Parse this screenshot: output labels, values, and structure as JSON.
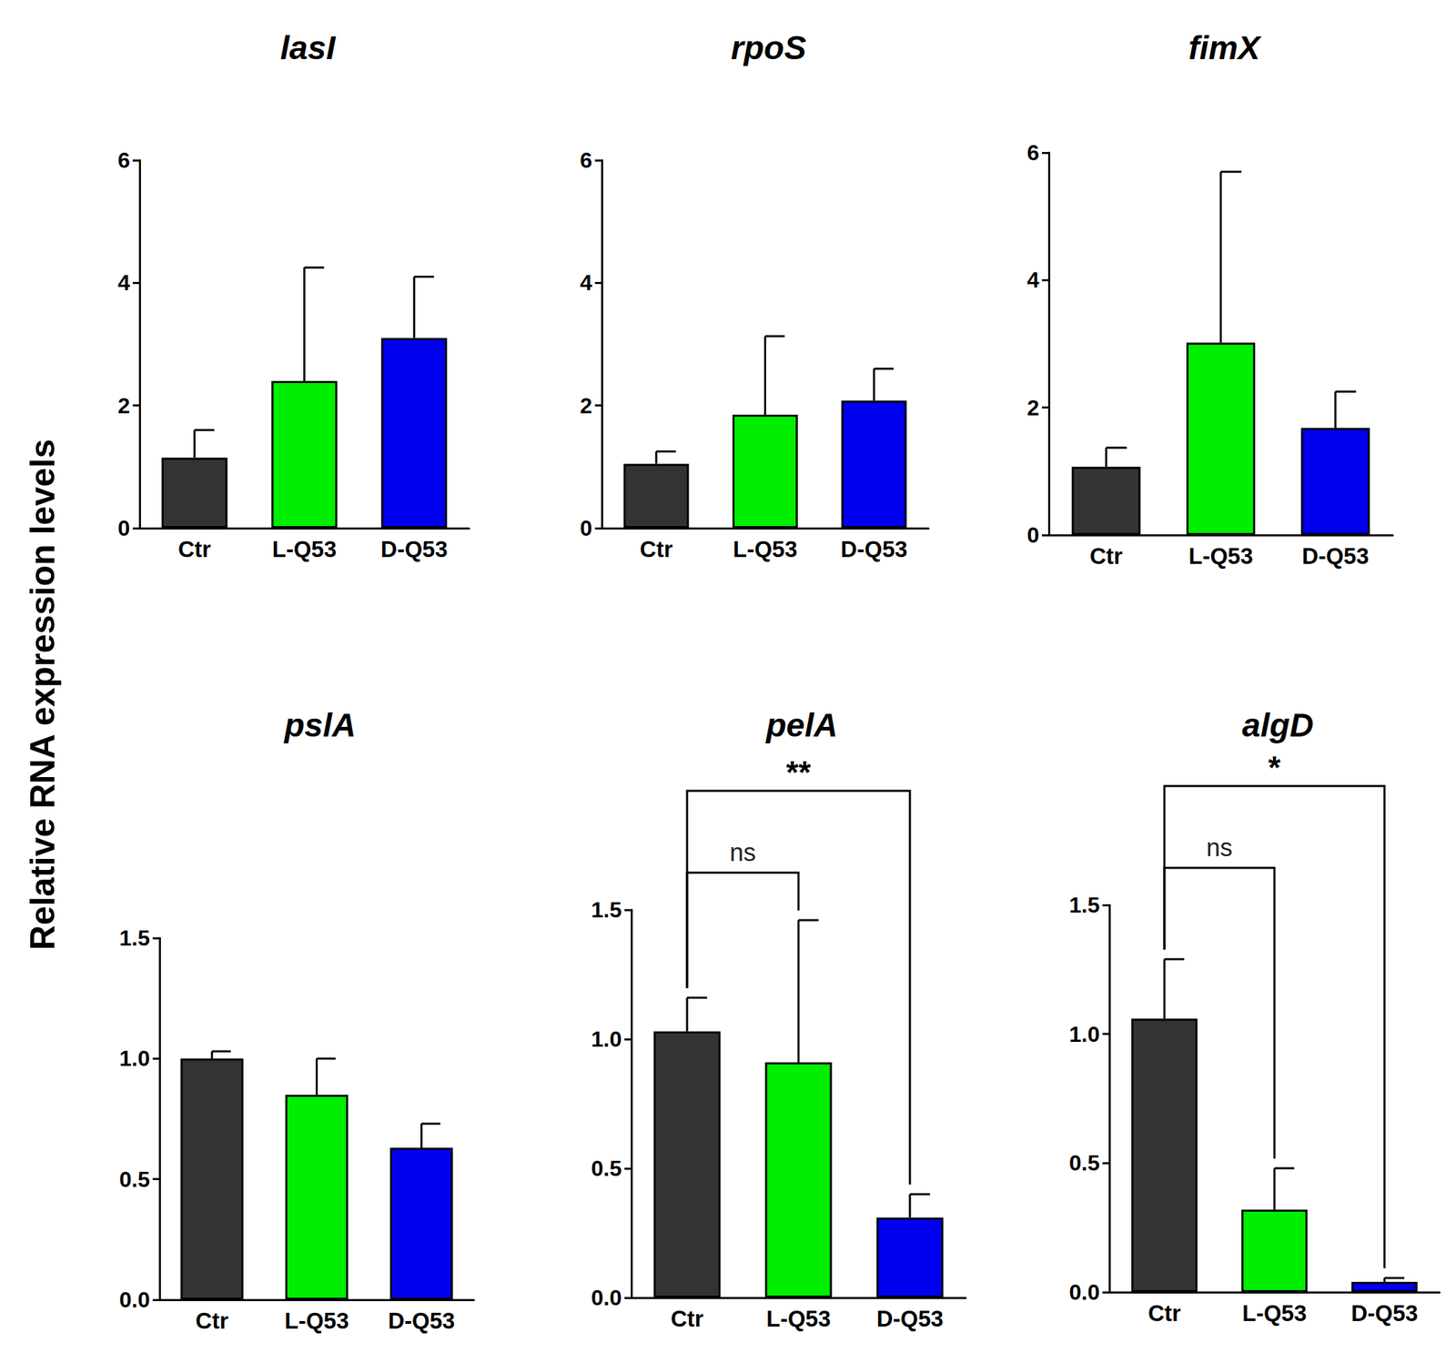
{
  "ylabel": "Relative RNA expression levels",
  "chart_data": [
    {
      "type": "bar",
      "title": "lasI",
      "categories": [
        "Ctr",
        "L-Q53",
        "D-Q53"
      ],
      "values": [
        1.15,
        2.4,
        3.1
      ],
      "error": [
        0.45,
        1.85,
        1.0
      ],
      "colors": [
        "#333333",
        "#00ee00",
        "#0000ee"
      ],
      "ylim": [
        0,
        6
      ],
      "yticks": [
        0,
        2,
        4,
        6
      ],
      "grid": false
    },
    {
      "type": "bar",
      "title": "rpoS",
      "categories": [
        "Ctr",
        "L-Q53",
        "D-Q53"
      ],
      "values": [
        1.05,
        1.85,
        2.08
      ],
      "error": [
        0.2,
        1.28,
        0.52
      ],
      "colors": [
        "#333333",
        "#00ee00",
        "#0000ee"
      ],
      "ylim": [
        0,
        6
      ],
      "yticks": [
        0,
        2,
        4,
        6
      ],
      "grid": false
    },
    {
      "type": "bar",
      "title": "fimX",
      "categories": [
        "Ctr",
        "L-Q53",
        "D-Q53"
      ],
      "values": [
        1.07,
        3.02,
        1.68
      ],
      "error": [
        0.3,
        2.68,
        0.57
      ],
      "colors": [
        "#333333",
        "#00ee00",
        "#0000ee"
      ],
      "ylim": [
        0,
        6
      ],
      "yticks": [
        0,
        2,
        4,
        6
      ],
      "grid": false
    },
    {
      "type": "bar",
      "title": "pslA",
      "categories": [
        "Ctr",
        "L-Q53",
        "D-Q53"
      ],
      "values": [
        1.0,
        0.85,
        0.63
      ],
      "error": [
        0.03,
        0.15,
        0.1
      ],
      "colors": [
        "#333333",
        "#00ee00",
        "#0000ee"
      ],
      "ylim": [
        0,
        1.5
      ],
      "yticks": [
        {
          "value": 0,
          "label": "0.0"
        },
        0.5,
        {
          "value": 1,
          "label": "1.0"
        },
        1.5
      ],
      "grid": false
    },
    {
      "type": "bar",
      "title": "pelA",
      "categories": [
        "Ctr",
        "L-Q53",
        "D-Q53"
      ],
      "values": [
        1.03,
        0.91,
        0.31
      ],
      "error": [
        0.13,
        0.55,
        0.09
      ],
      "colors": [
        "#333333",
        "#00ee00",
        "#0000ee"
      ],
      "ylim": [
        0,
        1.5
      ],
      "yticks": [
        {
          "value": 0,
          "label": "0.0"
        },
        0.5,
        {
          "value": 1,
          "label": "1.0"
        },
        1.5
      ],
      "grid": false,
      "annotations": [
        {
          "from": "Ctr",
          "to": "L-Q53",
          "text": "ns"
        },
        {
          "from": "Ctr",
          "to": "D-Q53",
          "text": "**"
        }
      ]
    },
    {
      "type": "bar",
      "title": "algD",
      "categories": [
        "Ctr",
        "L-Q53",
        "D-Q53"
      ],
      "values": [
        1.06,
        0.32,
        0.04
      ],
      "error": [
        0.23,
        0.16,
        0.015
      ],
      "colors": [
        "#333333",
        "#00ee00",
        "#0000ee"
      ],
      "ylim": [
        0,
        1.5
      ],
      "yticks": [
        {
          "value": 0,
          "label": "0.0"
        },
        0.5,
        {
          "value": 1,
          "label": "1.0"
        },
        1.5
      ],
      "grid": false,
      "annotations": [
        {
          "from": "Ctr",
          "to": "L-Q53",
          "text": "ns"
        },
        {
          "from": "Ctr",
          "to": "D-Q53",
          "text": "*"
        }
      ]
    }
  ]
}
